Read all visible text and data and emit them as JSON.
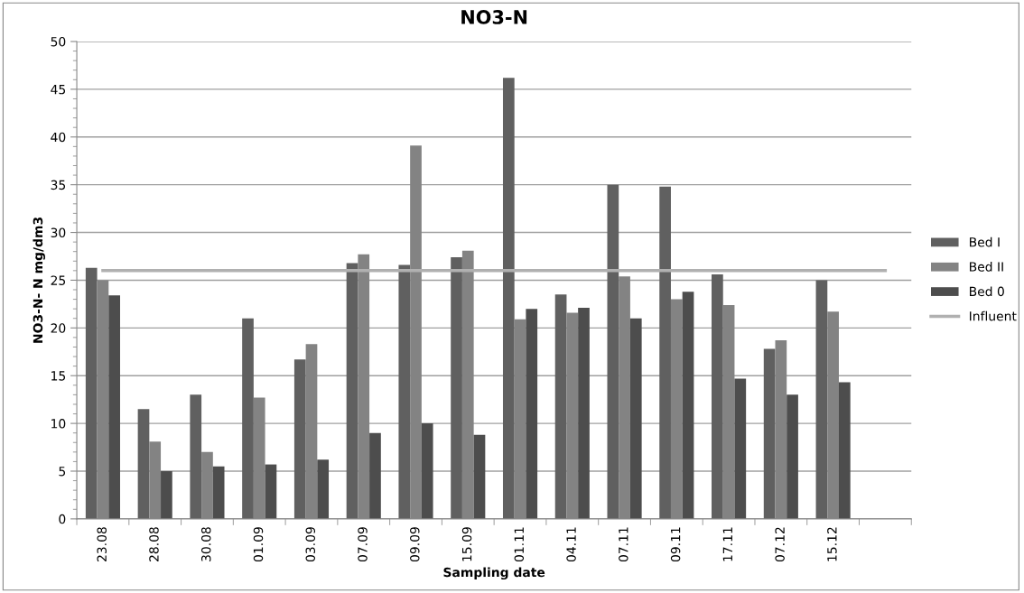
{
  "chart_data": {
    "type": "bar",
    "title": "NO3-N",
    "xlabel": "Sampling date",
    "ylabel": "NO3-N- N mg/dm3",
    "categories": [
      "23.08",
      "28.08",
      "30.08",
      "01.09",
      "03.09",
      "07.09",
      "09.09",
      "15.09",
      "01.11",
      "04.11",
      "07.11",
      "09.11",
      "17.11",
      "07.12",
      "15.12",
      null
    ],
    "series": [
      {
        "name": "Bed I",
        "color": "#606060",
        "values": [
          26.3,
          11.5,
          13.0,
          21.0,
          16.7,
          26.8,
          26.6,
          27.4,
          46.2,
          23.5,
          35.0,
          34.8,
          25.6,
          17.8,
          25.0,
          null
        ]
      },
      {
        "name": "Bed II",
        "color": "#838383",
        "values": [
          25.0,
          8.1,
          7.0,
          12.7,
          18.3,
          27.7,
          39.1,
          28.1,
          20.9,
          21.6,
          25.4,
          23.0,
          22.4,
          18.7,
          21.7,
          null
        ]
      },
      {
        "name": "Bed 0",
        "color": "#4d4d4d",
        "values": [
          23.4,
          5.0,
          5.5,
          5.7,
          6.2,
          9.0,
          10.0,
          8.8,
          22.0,
          22.1,
          21.0,
          23.8,
          14.7,
          13.0,
          14.3,
          null
        ]
      },
      {
        "name": "Influent",
        "type": "line",
        "color": "#b0b0b0",
        "values": [
          26,
          26,
          26,
          26,
          26,
          26,
          26,
          26,
          26,
          26,
          26,
          26,
          26,
          26,
          26,
          26
        ]
      }
    ],
    "ylim": [
      0,
      50
    ],
    "yticks": [
      0,
      5,
      10,
      15,
      20,
      25,
      30,
      35,
      40,
      45,
      50
    ],
    "grid": "y",
    "legend": "right",
    "marker": "none",
    "line_style": "solid"
  }
}
